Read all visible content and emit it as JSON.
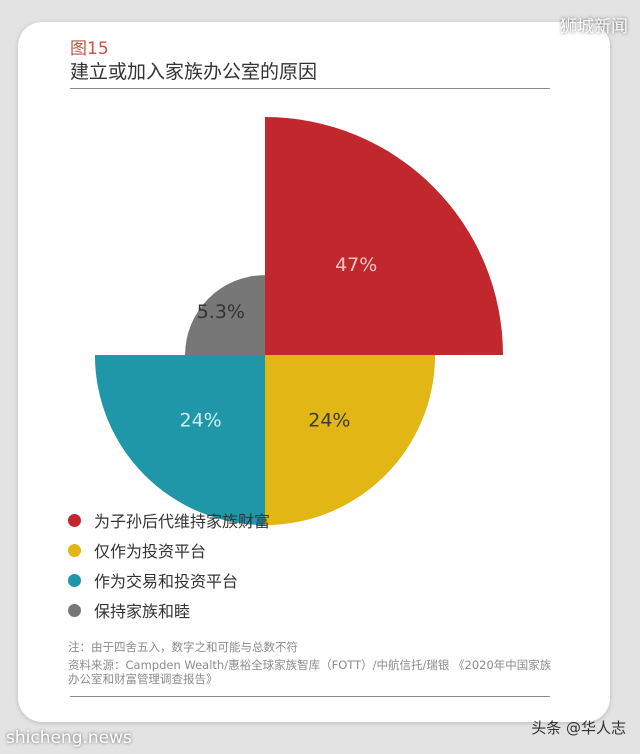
{
  "watermarks": {
    "top_right": "狮城新闻",
    "bottom_left": "shicheng.news",
    "bottom_right": "头条 @华人志"
  },
  "figure": {
    "label": "图15",
    "title": "建立或加入家族办公室的原因"
  },
  "chart_data": {
    "type": "pie",
    "subtype": "polar-area",
    "slices": [
      {
        "label": "为子孙后代维持家族财富",
        "value": 47,
        "display": "47%",
        "color": "#c0282d"
      },
      {
        "label": "仅作为投资平台",
        "value": 24,
        "display": "24%",
        "color": "#e2b614"
      },
      {
        "label": "作为交易和投资平台",
        "value": 24,
        "display": "24%",
        "color": "#1f97a8"
      },
      {
        "label": "保持家族和睦",
        "value": 5.3,
        "display": "5.3%",
        "color": "#777777"
      }
    ],
    "legend_position": "bottom"
  },
  "notes": {
    "note": "注：由于四舍五入，数字之和可能与总数不符",
    "source": "资料来源：Campden Wealth/惠裕全球家族智库（FOTT）/中航信托/瑞银 《2020年中国家族办公室和财富管理调查报告》"
  }
}
